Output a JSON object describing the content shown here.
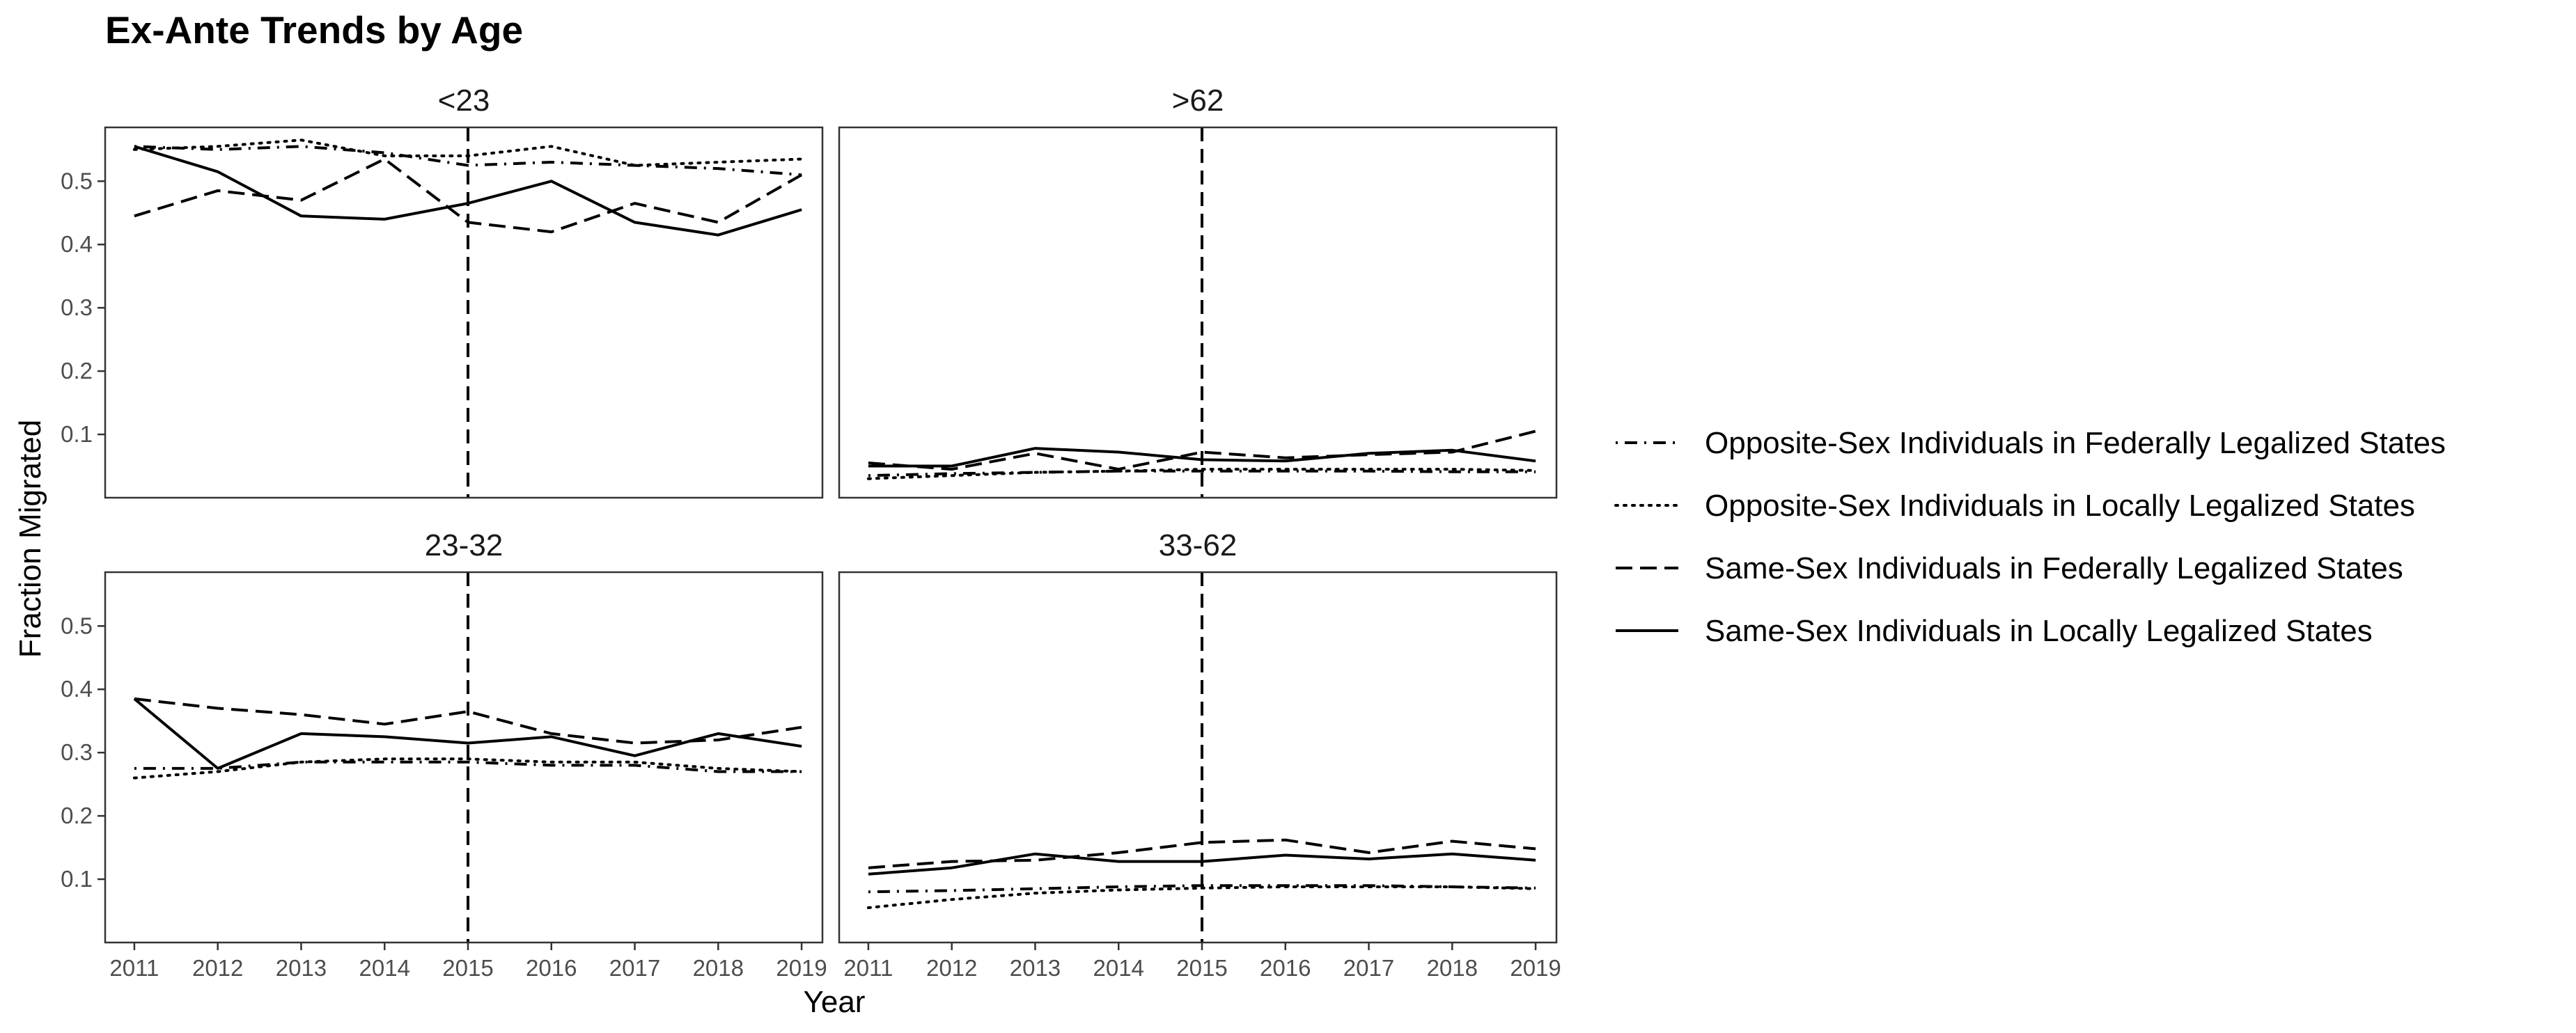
{
  "chart_data": {
    "type": "line",
    "title": "Ex-Ante Trends by Age",
    "xlabel": "Year",
    "ylabel": "Fraction Migrated",
    "x": [
      2011,
      2012,
      2013,
      2014,
      2015,
      2016,
      2017,
      2018,
      2019
    ],
    "x_tick_labels": [
      "2011",
      "2012",
      "2013",
      "2014",
      "2015",
      "2016",
      "2017",
      "2018",
      "2019"
    ],
    "y_ticks": [
      0.1,
      0.2,
      0.3,
      0.4,
      0.5
    ],
    "y_tick_labels": [
      "0.1",
      "0.2",
      "0.3",
      "0.4",
      "0.5"
    ],
    "ylim": [
      0.0,
      0.585
    ],
    "vline_x": 2015,
    "legend": [
      {
        "name": "Opposite-Sex Individuals in Federally Legalized States",
        "linestyle": "dotdash"
      },
      {
        "name": "Opposite-Sex Individuals in Locally Legalized States",
        "linestyle": "dotted"
      },
      {
        "name": "Same-Sex Individuals in Federally Legalized States",
        "linestyle": "dashed"
      },
      {
        "name": "Same-Sex Individuals in Locally Legalized States",
        "linestyle": "solid"
      }
    ],
    "panels": [
      {
        "label": "<23",
        "series": [
          {
            "name": "Opposite-Sex Individuals in Federally Legalized States",
            "values": [
              0.555,
              0.55,
              0.555,
              0.545,
              0.525,
              0.53,
              0.525,
              0.52,
              0.51
            ]
          },
          {
            "name": "Opposite-Sex Individuals in Locally Legalized States",
            "values": [
              0.55,
              0.555,
              0.565,
              0.54,
              0.54,
              0.555,
              0.525,
              0.53,
              0.535
            ]
          },
          {
            "name": "Same-Sex Individuals in Federally Legalized States",
            "values": [
              0.445,
              0.485,
              0.47,
              0.535,
              0.435,
              0.42,
              0.465,
              0.435,
              0.51
            ]
          },
          {
            "name": "Same-Sex Individuals in Locally Legalized States",
            "values": [
              0.555,
              0.515,
              0.445,
              0.44,
              0.465,
              0.5,
              0.435,
              0.415,
              0.455
            ]
          }
        ]
      },
      {
        "label": ">62",
        "series": [
          {
            "name": "Opposite-Sex Individuals in Federally Legalized States",
            "values": [
              0.035,
              0.038,
              0.04,
              0.042,
              0.042,
              0.042,
              0.042,
              0.041,
              0.041
            ]
          },
          {
            "name": "Opposite-Sex Individuals in Locally Legalized States",
            "values": [
              0.03,
              0.035,
              0.04,
              0.042,
              0.045,
              0.045,
              0.045,
              0.045,
              0.043
            ]
          },
          {
            "name": "Same-Sex Individuals in Federally Legalized States",
            "values": [
              0.055,
              0.045,
              0.07,
              0.045,
              0.072,
              0.063,
              0.068,
              0.072,
              0.105
            ]
          },
          {
            "name": "Same-Sex Individuals in Locally Legalized States",
            "values": [
              0.05,
              0.05,
              0.078,
              0.072,
              0.06,
              0.058,
              0.07,
              0.075,
              0.058
            ]
          }
        ]
      },
      {
        "label": "23-32",
        "series": [
          {
            "name": "Opposite-Sex Individuals in Federally Legalized States",
            "values": [
              0.275,
              0.275,
              0.285,
              0.285,
              0.285,
              0.28,
              0.28,
              0.27,
              0.27
            ]
          },
          {
            "name": "Opposite-Sex Individuals in Locally Legalized States",
            "values": [
              0.26,
              0.27,
              0.285,
              0.29,
              0.29,
              0.285,
              0.285,
              0.275,
              0.27
            ]
          },
          {
            "name": "Same-Sex Individuals in Federally Legalized States",
            "values": [
              0.385,
              0.37,
              0.36,
              0.345,
              0.365,
              0.33,
              0.315,
              0.32,
              0.34
            ]
          },
          {
            "name": "Same-Sex Individuals in Locally Legalized States",
            "values": [
              0.385,
              0.275,
              0.33,
              0.325,
              0.315,
              0.325,
              0.295,
              0.33,
              0.31
            ]
          }
        ]
      },
      {
        "label": "33-62",
        "series": [
          {
            "name": "Opposite-Sex Individuals in Federally Legalized States",
            "values": [
              0.08,
              0.082,
              0.085,
              0.088,
              0.09,
              0.09,
              0.09,
              0.088,
              0.086
            ]
          },
          {
            "name": "Opposite-Sex Individuals in Locally Legalized States",
            "values": [
              0.055,
              0.068,
              0.078,
              0.083,
              0.086,
              0.088,
              0.088,
              0.088,
              0.085
            ]
          },
          {
            "name": "Same-Sex Individuals in Federally Legalized States",
            "values": [
              0.118,
              0.128,
              0.13,
              0.142,
              0.158,
              0.162,
              0.142,
              0.16,
              0.148
            ]
          },
          {
            "name": "Same-Sex Individuals in Locally Legalized States",
            "values": [
              0.108,
              0.118,
              0.14,
              0.128,
              0.128,
              0.138,
              0.132,
              0.14,
              0.13
            ]
          }
        ]
      }
    ]
  }
}
